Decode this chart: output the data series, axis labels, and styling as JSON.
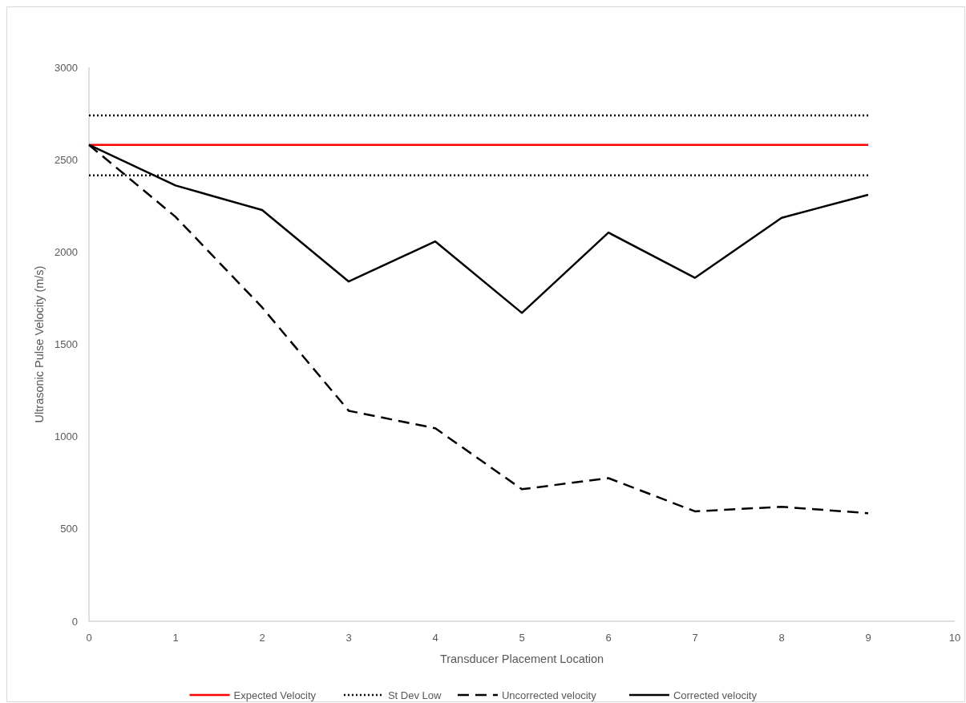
{
  "chart_data": {
    "type": "line",
    "xlabel": "Transducer Placement Location",
    "ylabel": "Ultrasonic Pulse Velocity (m/s)",
    "x": [
      0,
      1,
      2,
      3,
      4,
      5,
      6,
      7,
      8,
      9
    ],
    "xlim": [
      0,
      10
    ],
    "xticks": [
      0,
      1,
      2,
      3,
      4,
      5,
      6,
      7,
      8,
      9,
      10
    ],
    "ylim": [
      0,
      3000
    ],
    "yticks": [
      0,
      500,
      1000,
      1500,
      2000,
      2500,
      3000
    ],
    "grid": false,
    "legend": "bottom",
    "marker": "none",
    "series": [
      {
        "name": "Expected Velocity",
        "color": "#ff0000",
        "line_style": "solid",
        "values": [
          2580,
          2580,
          2580,
          2580,
          2580,
          2580,
          2580,
          2580,
          2580,
          2580
        ]
      },
      {
        "name": "St Dev Low",
        "color": "#000000",
        "line_style": "dotted",
        "values": [
          2415,
          2415,
          2415,
          2415,
          2415,
          2415,
          2415,
          2415,
          2415,
          2415
        ]
      },
      {
        "color": "#000000",
        "line_style": "dotted",
        "values": [
          2740,
          2740,
          2740,
          2740,
          2740,
          2740,
          2740,
          2740,
          2740,
          2740
        ]
      },
      {
        "name": "Uncorrected velocity",
        "color": "#000000",
        "line_style": "dashed",
        "values": [
          2580,
          2190,
          1700,
          1140,
          1045,
          715,
          775,
          595,
          620,
          585
        ]
      },
      {
        "name": "Corrected velocity",
        "color": "#000000",
        "line_style": "solid",
        "values": [
          2580,
          2360,
          2227,
          1840,
          2057,
          1670,
          2105,
          1860,
          2185,
          2310
        ]
      }
    ]
  }
}
